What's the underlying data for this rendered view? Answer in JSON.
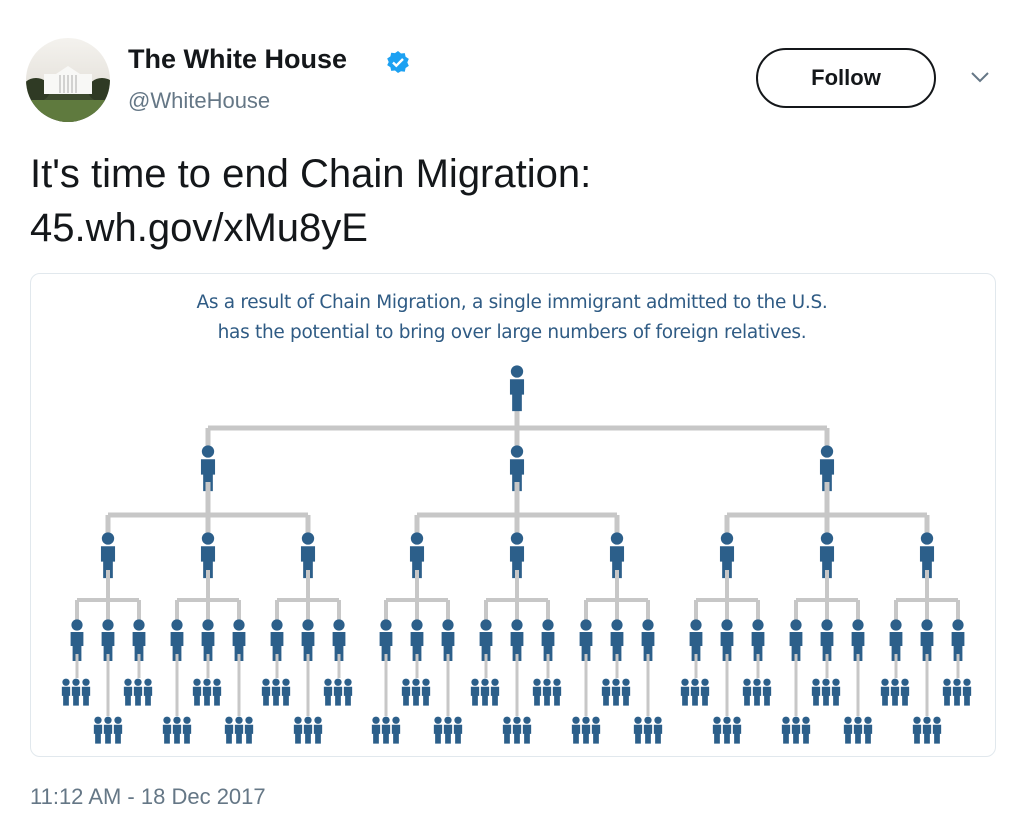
{
  "header": {
    "name": "The White House",
    "handle": "@WhiteHouse",
    "follow": "Follow"
  },
  "tweet": {
    "lines": [
      "It's time to end Chain Migration:",
      "45.wh.gov/xMu8yE"
    ]
  },
  "image": {
    "caption": [
      "As a result of Chain Migration, a single immigrant admitted to the U.S.",
      "has the potential to bring over large numbers of foreign relatives."
    ]
  },
  "timestamp": "11:12 AM - 18 Dec 2017"
}
